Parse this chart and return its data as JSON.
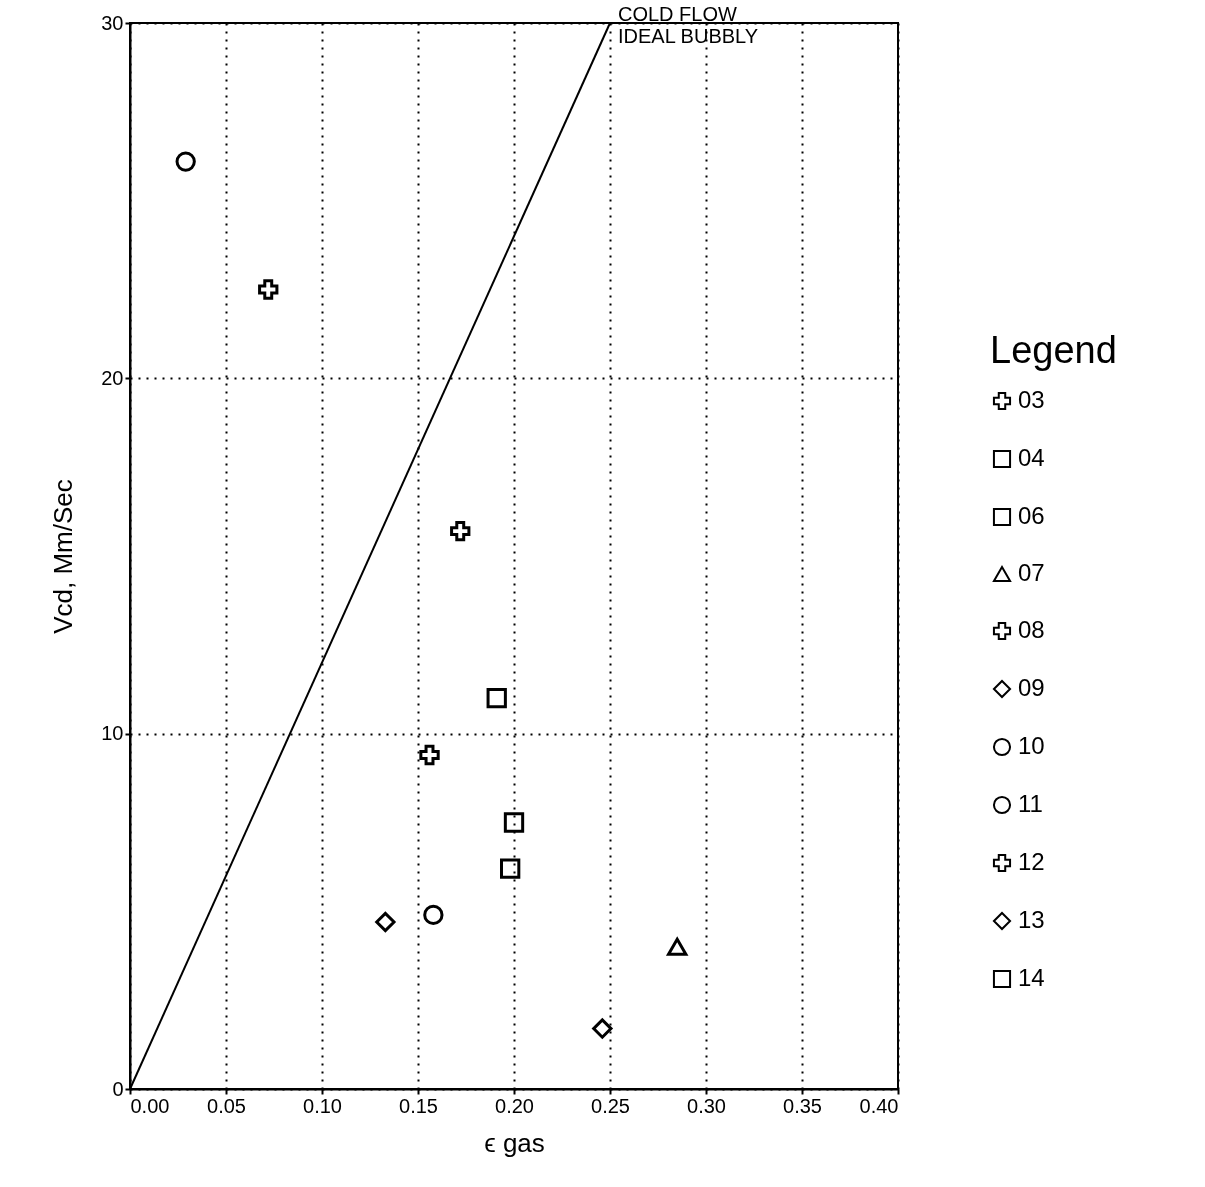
{
  "chart_data": {
    "type": "scatter",
    "xlabel": "ϵ   gas",
    "ylabel": "Vcd,  Mm/Sec",
    "legend_title": "Legend",
    "legend": "right",
    "grid": true,
    "line_style": "dotted",
    "xlim": [
      0,
      0.4
    ],
    "ylim": [
      0,
      30
    ],
    "xticks": [
      {
        "value": 0,
        "label": "0.00"
      },
      {
        "value": 0.05,
        "label": "0.05"
      },
      {
        "value": 0.1,
        "label": "0.10"
      },
      {
        "value": 0.15,
        "label": "0.15"
      },
      {
        "value": 0.2,
        "label": "0.20"
      },
      {
        "value": 0.25,
        "label": "0.25"
      },
      {
        "value": 0.3,
        "label": "0.30"
      },
      {
        "value": 0.35,
        "label": "0.35"
      },
      {
        "value": 0.4,
        "label": "0.40"
      }
    ],
    "yticks": [
      0,
      10,
      20,
      30
    ],
    "series": [
      {
        "type": "line",
        "name": "COLD FLOW\nIDEAL BUBBLY",
        "color": "#000000",
        "x": [
          0,
          0.25
        ],
        "values": [
          0,
          30
        ],
        "line_style": "solid"
      },
      {
        "name": "03",
        "color": "#000000",
        "marker": "cross",
        "x": [
          0.156
        ],
        "values": [
          9.4
        ]
      },
      {
        "name": "04",
        "color": "#000000",
        "marker": "square",
        "x": [
          0.191
        ],
        "values": [
          11.0
        ]
      },
      {
        "name": "06",
        "color": "#000000",
        "marker": "square",
        "x": [
          0.2
        ],
        "values": [
          7.5
        ]
      },
      {
        "name": "07",
        "color": "#000000",
        "marker": "triangle",
        "x": [
          0.285
        ],
        "values": [
          4.0
        ]
      },
      {
        "name": "08",
        "color": "#000000",
        "marker": "cross",
        "x": [
          0.072
        ],
        "values": [
          22.5
        ]
      },
      {
        "name": "09",
        "color": "#000000",
        "marker": "diamond",
        "x": [
          0.246
        ],
        "values": [
          1.7
        ]
      },
      {
        "name": "10",
        "color": "#000000",
        "marker": "circle",
        "x": [
          0.029
        ],
        "values": [
          26.1
        ]
      },
      {
        "name": "11",
        "color": "#000000",
        "marker": "circle",
        "x": [
          0.158
        ],
        "values": [
          4.9
        ]
      },
      {
        "name": "12",
        "color": "#000000",
        "marker": "cross",
        "x": [
          0.172
        ],
        "values": [
          15.7
        ]
      },
      {
        "name": "13",
        "color": "#000000",
        "marker": "diamond",
        "x": [
          0.133
        ],
        "values": [
          4.7
        ]
      },
      {
        "name": "14",
        "color": "#000000",
        "marker": "square",
        "x": [
          0.198
        ],
        "values": [
          6.2
        ]
      }
    ]
  }
}
